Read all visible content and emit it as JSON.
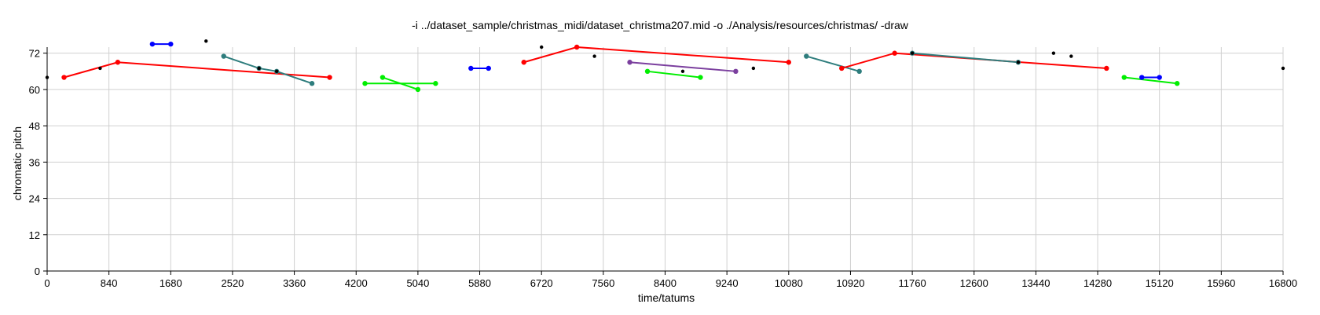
{
  "chart_data": {
    "type": "line",
    "title": "-i ../dataset_sample/christmas_midi/dataset_christma207.mid -o ./Analysis/resources/christmas/ -draw",
    "xlabel": "time/tatums",
    "ylabel": "chromatic pitch",
    "xlim": [
      0,
      16800
    ],
    "ylim": [
      0,
      74
    ],
    "grid": true,
    "xticks": [
      0,
      840,
      1680,
      2520,
      3360,
      4200,
      5040,
      5880,
      6720,
      7560,
      8400,
      9240,
      10080,
      10920,
      11760,
      12600,
      13440,
      14280,
      15120,
      15960,
      16800
    ],
    "yticks": [
      0,
      12,
      24,
      36,
      48,
      60,
      72
    ],
    "colors": {
      "red": "#ff0000",
      "blue": "#0000ff",
      "green": "#00ee00",
      "teal": "#2e7d7d",
      "purple": "#7b3f9e",
      "point": "#000000"
    },
    "series": [
      {
        "color": "red",
        "points": [
          [
            230,
            64
          ],
          [
            960,
            69
          ],
          [
            3840,
            64
          ]
        ]
      },
      {
        "color": "blue",
        "points": [
          [
            1430,
            75
          ],
          [
            1680,
            75
          ]
        ]
      },
      {
        "color": "teal",
        "points": [
          [
            2400,
            71
          ],
          [
            2880,
            67
          ],
          [
            3120,
            66
          ],
          [
            3600,
            62
          ]
        ]
      },
      {
        "color": "green",
        "points": [
          [
            4320,
            62
          ],
          [
            5280,
            62
          ]
        ]
      },
      {
        "color": "green",
        "points": [
          [
            4560,
            64
          ],
          [
            5040,
            60
          ]
        ]
      },
      {
        "color": "blue",
        "points": [
          [
            5760,
            67
          ],
          [
            6000,
            67
          ]
        ]
      },
      {
        "color": "red",
        "points": [
          [
            6480,
            69
          ],
          [
            7200,
            74
          ],
          [
            10080,
            69
          ]
        ]
      },
      {
        "color": "purple",
        "points": [
          [
            7920,
            69
          ],
          [
            9360,
            66
          ]
        ]
      },
      {
        "color": "green",
        "points": [
          [
            8160,
            66
          ],
          [
            8880,
            64
          ]
        ]
      },
      {
        "color": "teal",
        "points": [
          [
            10320,
            71
          ],
          [
            11040,
            66
          ]
        ]
      },
      {
        "color": "red",
        "points": [
          [
            10800,
            67
          ],
          [
            11520,
            72
          ],
          [
            14400,
            67
          ]
        ]
      },
      {
        "color": "teal",
        "points": [
          [
            11760,
            72
          ],
          [
            13200,
            69
          ]
        ]
      },
      {
        "color": "green",
        "points": [
          [
            14640,
            64
          ],
          [
            15360,
            62
          ]
        ]
      },
      {
        "color": "blue",
        "points": [
          [
            14880,
            64
          ],
          [
            15120,
            64
          ]
        ]
      }
    ],
    "points": [
      [
        0,
        64
      ],
      [
        720,
        67
      ],
      [
        2160,
        76
      ],
      [
        2880,
        67
      ],
      [
        3120,
        66
      ],
      [
        6720,
        74
      ],
      [
        7440,
        71
      ],
      [
        8640,
        66
      ],
      [
        9600,
        67
      ],
      [
        11760,
        72
      ],
      [
        13200,
        69
      ],
      [
        13680,
        72
      ],
      [
        13920,
        71
      ],
      [
        16800,
        67
      ]
    ]
  }
}
